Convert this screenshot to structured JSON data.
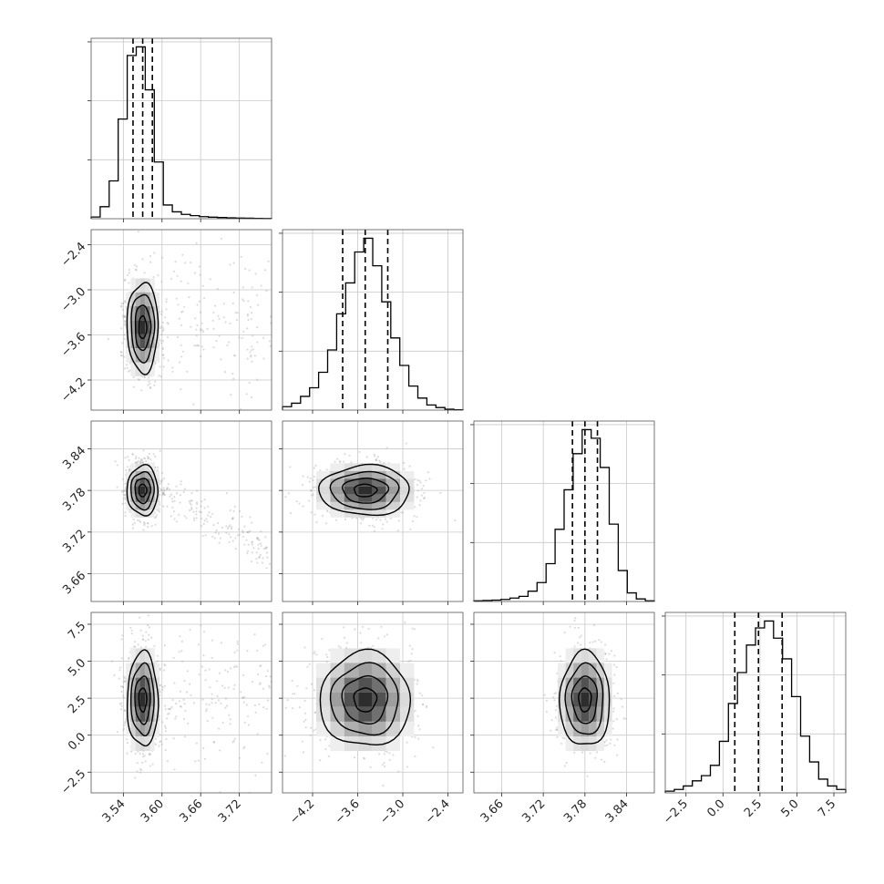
{
  "chart_data": {
    "type": "corner",
    "parameters": [
      {
        "range": [
          3.49,
          3.77
        ],
        "ticks": [
          3.54,
          3.6,
          3.66,
          3.72
        ],
        "tick_labels": [
          "3.54",
          "3.60",
          "3.66",
          "3.72"
        ],
        "mean": 3.57,
        "sd": 0.012,
        "quantiles": [
          3.555,
          3.57,
          3.585
        ],
        "hist": [
          0.01,
          0.07,
          0.22,
          0.58,
          0.95,
          1.0,
          0.75,
          0.33,
          0.08,
          0.04,
          0.025,
          0.018,
          0.012,
          0.009,
          0.007,
          0.005,
          0.004,
          0.003,
          0.002,
          0.001
        ]
      },
      {
        "range": [
          -4.6,
          -2.2
        ],
        "ticks": [
          -4.2,
          -3.6,
          -3.0,
          -2.4
        ],
        "tick_labels": [
          "−4.2",
          "−3.6",
          "−3.0",
          "−2.4"
        ],
        "mean": -3.5,
        "sd": 0.3,
        "quantiles": [
          -3.8,
          -3.5,
          -3.2
        ],
        "hist": [
          0.02,
          0.04,
          0.08,
          0.13,
          0.22,
          0.35,
          0.56,
          0.74,
          0.92,
          1.0,
          0.84,
          0.63,
          0.42,
          0.26,
          0.14,
          0.07,
          0.03,
          0.015,
          0.005,
          0.002
        ]
      },
      {
        "range": [
          3.62,
          3.88
        ],
        "ticks": [
          3.66,
          3.72,
          3.78,
          3.84
        ],
        "tick_labels": [
          "3.66",
          "3.72",
          "3.78",
          "3.84"
        ],
        "mean": 3.78,
        "sd": 0.018,
        "quantiles": [
          3.762,
          3.78,
          3.798
        ],
        "hist": [
          0.004,
          0.006,
          0.008,
          0.012,
          0.02,
          0.03,
          0.06,
          0.11,
          0.22,
          0.42,
          0.65,
          0.86,
          1.0,
          0.95,
          0.78,
          0.45,
          0.18,
          0.05,
          0.015,
          0.004
        ]
      },
      {
        "range": [
          -3.9,
          8.3
        ],
        "ticks": [
          -2.5,
          0.0,
          2.5,
          5.0,
          7.5
        ],
        "tick_labels": [
          "−2.5",
          "0.0",
          "2.5",
          "5.0",
          "7.5"
        ],
        "mean": 2.4,
        "sd": 1.6,
        "quantiles": [
          0.8,
          2.4,
          4.0
        ],
        "hist": [
          0.01,
          0.02,
          0.04,
          0.07,
          0.1,
          0.16,
          0.3,
          0.52,
          0.7,
          0.86,
          0.96,
          1.0,
          0.9,
          0.78,
          0.56,
          0.33,
          0.18,
          0.08,
          0.04,
          0.02
        ]
      }
    ],
    "contour_levels_sigma": [
      0.5,
      1.0,
      1.5,
      2.0
    ],
    "grid": true
  }
}
